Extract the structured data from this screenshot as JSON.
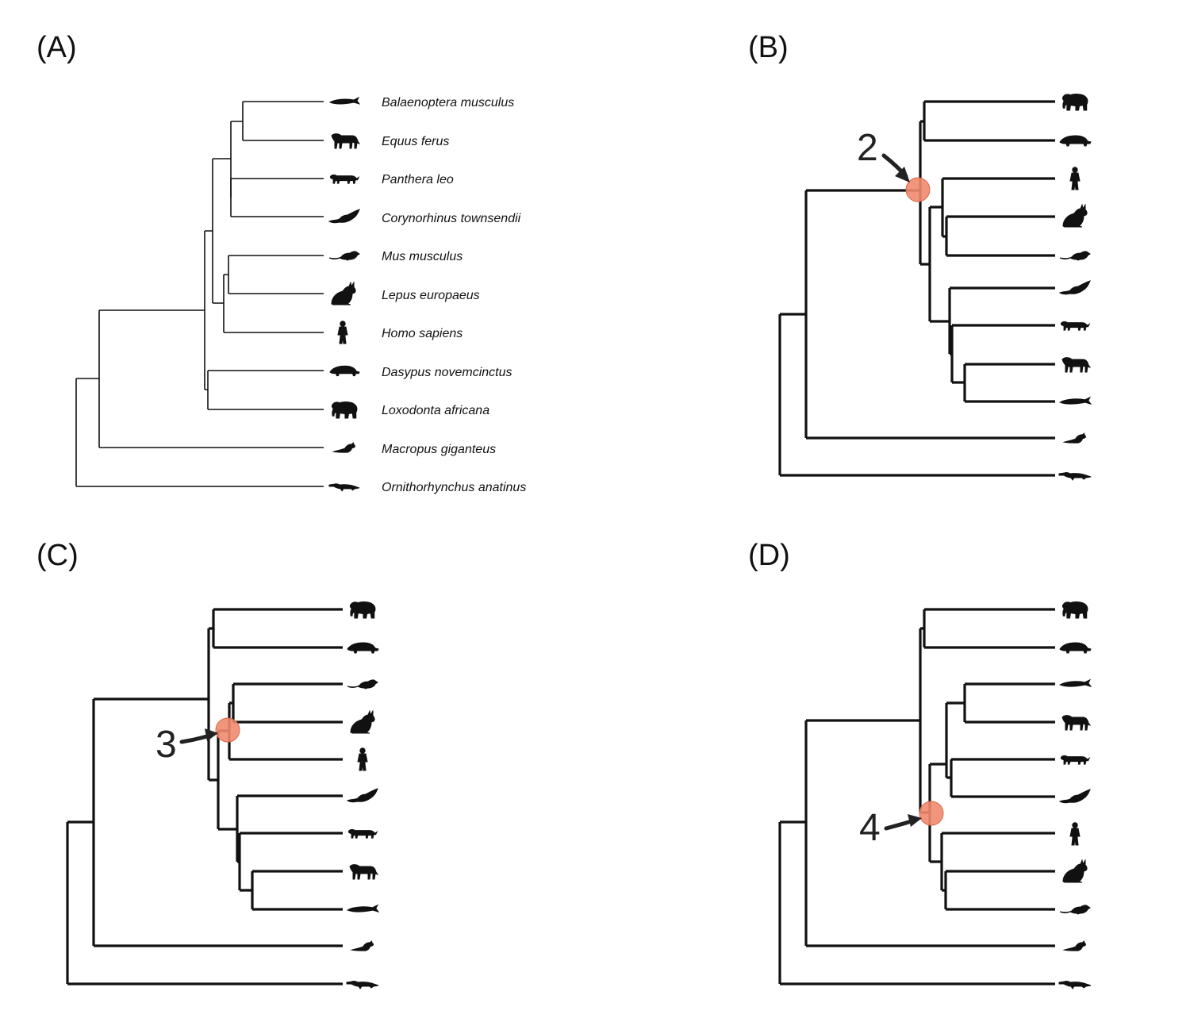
{
  "panels": {
    "a": {
      "label": "(A)"
    },
    "b": {
      "label": "(B)",
      "node_number": "2"
    },
    "c": {
      "label": "(C)",
      "node_number": "3"
    },
    "d": {
      "label": "(D)",
      "node_number": "4"
    }
  },
  "species": [
    {
      "id": "balaenoptera",
      "name": "Balaenoptera musculus",
      "icon": "whale-icon"
    },
    {
      "id": "equus",
      "name": "Equus ferus",
      "icon": "horse-icon"
    },
    {
      "id": "panthera",
      "name": "Panthera leo",
      "icon": "lion-icon"
    },
    {
      "id": "corynorhinus",
      "name": "Corynorhinus townsendii",
      "icon": "bat-icon"
    },
    {
      "id": "mus",
      "name": "Mus musculus",
      "icon": "mouse-icon"
    },
    {
      "id": "lepus",
      "name": "Lepus europaeus",
      "icon": "hare-icon"
    },
    {
      "id": "homo",
      "name": "Homo sapiens",
      "icon": "human-icon"
    },
    {
      "id": "dasypus",
      "name": "Dasypus novemcinctus",
      "icon": "armadillo-icon"
    },
    {
      "id": "loxodonta",
      "name": "Loxodonta africana",
      "icon": "elephant-icon"
    },
    {
      "id": "macropus",
      "name": "Macropus giganteus",
      "icon": "kangaroo-icon"
    },
    {
      "id": "ornithorhynchus",
      "name": "Ornithorhynchus anatinus",
      "icon": "platypus-icon"
    }
  ],
  "trees": {
    "a": "(((((balaenoptera,equus),(panthera,corynorhinus)),((mus,lepus),homo)),(dasypus,loxodonta)),macropus),ornithorhynchus",
    "b": "((((loxodonta,dasypus),((homo,(lepus,mus)),(corynorhinus,(panthera,(equus,balaenoptera))))),macropus),ornithorhynchus)",
    "c": "((((loxodonta,dasypus),(((mus,lepus),homo),(corynorhinus,(panthera,(equus,balaenoptera))))),macropus),ornithorhynchus)",
    "d": "((((loxodonta,dasypus),(((balaenoptera,equus),(panthera,corynorhinus)),(homo,(lepus,mus)))),macropus),ornithorhynchus)"
  },
  "highlighted_node": {
    "b": "homo+lepus+mus+corynorhinus+panthera+equus+balaenoptera",
    "c": "mus+lepus+homo",
    "d": "homo+lepus+mus"
  },
  "colors": {
    "branch": "#111111",
    "node_marker": "#f08a6e",
    "node_marker_edge": "#d9664a",
    "arrow": "#222222"
  }
}
